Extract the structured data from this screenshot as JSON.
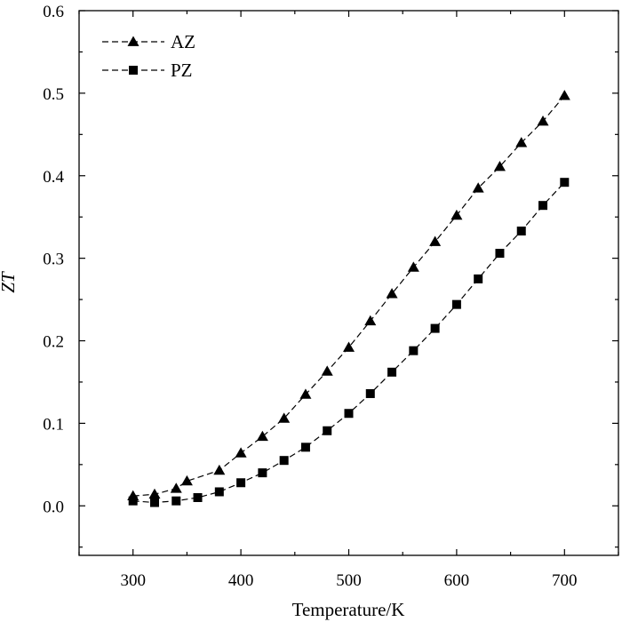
{
  "chart_data": {
    "type": "scatter",
    "title": "",
    "xlabel": "Temperature/K",
    "ylabel": "ZT",
    "xlim": [
      250,
      750
    ],
    "ylim": [
      -0.06,
      0.6
    ],
    "xticks": [
      300,
      400,
      500,
      600,
      700
    ],
    "xtick_labels": [
      "300",
      "400",
      "500",
      "600",
      "700"
    ],
    "yticks": [
      0.0,
      0.1,
      0.2,
      0.3,
      0.4,
      0.5,
      0.6
    ],
    "ytick_labels": [
      "0.0",
      "0.1",
      "0.2",
      "0.3",
      "0.4",
      "0.5",
      "0.6"
    ],
    "grid": false,
    "legend_position": "top-left",
    "series": [
      {
        "name": "AZ",
        "marker": "triangle",
        "line": "dashed",
        "color": "#000000",
        "x": [
          300,
          320,
          340,
          350,
          380,
          400,
          420,
          440,
          460,
          480,
          500,
          520,
          540,
          560,
          580,
          600,
          620,
          640,
          660,
          680,
          700
        ],
        "y": [
          0.012,
          0.014,
          0.021,
          0.03,
          0.043,
          0.064,
          0.084,
          0.106,
          0.135,
          0.163,
          0.192,
          0.224,
          0.257,
          0.289,
          0.32,
          0.352,
          0.385,
          0.411,
          0.44,
          0.466,
          0.497
        ]
      },
      {
        "name": "PZ",
        "marker": "square",
        "line": "dashed",
        "color": "#000000",
        "x": [
          300,
          320,
          340,
          360,
          380,
          400,
          420,
          440,
          460,
          480,
          500,
          520,
          540,
          560,
          580,
          600,
          620,
          640,
          660,
          680,
          700
        ],
        "y": [
          0.006,
          0.004,
          0.006,
          0.01,
          0.017,
          0.028,
          0.04,
          0.055,
          0.071,
          0.091,
          0.112,
          0.136,
          0.162,
          0.188,
          0.215,
          0.244,
          0.275,
          0.306,
          0.333,
          0.364,
          0.392
        ]
      }
    ]
  }
}
